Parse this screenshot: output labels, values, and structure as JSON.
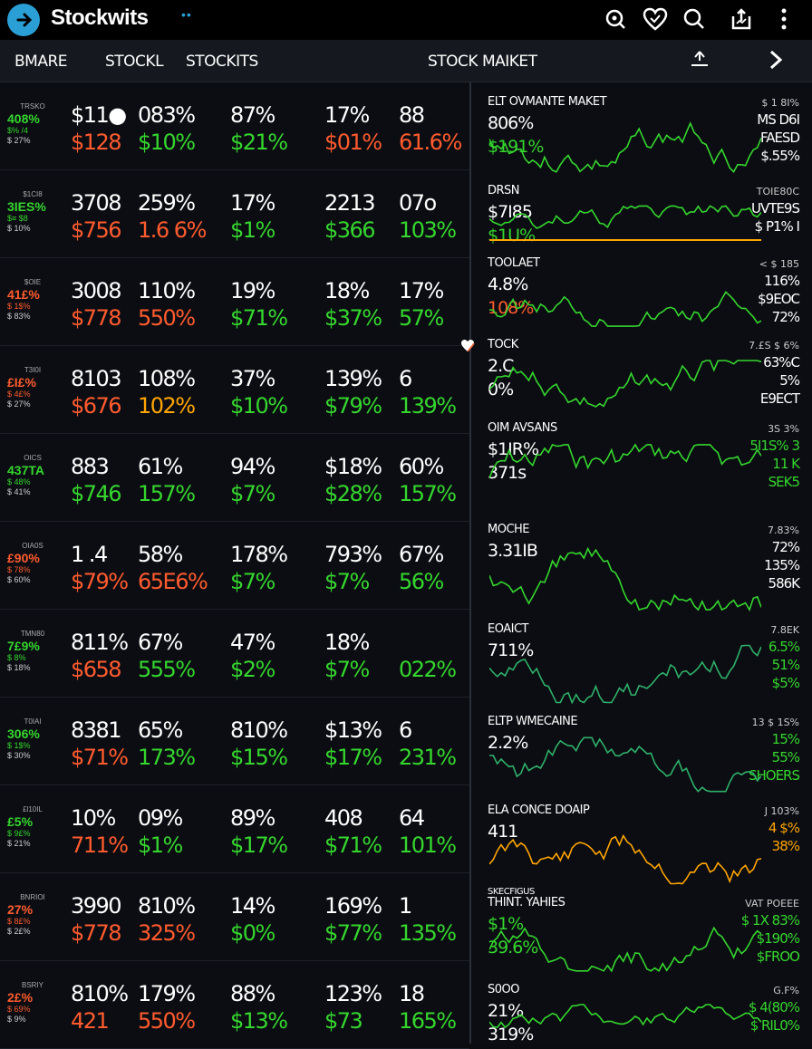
{
  "app": {
    "title": "Stockwits",
    "dots": "••"
  },
  "colors": {
    "green": "#35d62e",
    "red": "#ff5b2e",
    "accent": "#2a9fd6",
    "orange": "#ffa500",
    "bg": "#0a0c10"
  },
  "nav": {
    "items": [
      "BMARE",
      "STOCKL",
      "STOCKITS"
    ],
    "title": "STOCK MAIKET"
  },
  "grid": {
    "rows": [
      {
        "tk": [
          "TRSKO",
          "408%",
          "$% /4",
          "$ 27%"
        ],
        "tkc": "green",
        "cells": [
          [
            "$11●",
            "$128",
            "red"
          ],
          [
            "083%",
            "$10%",
            "green"
          ],
          [
            "87%",
            "$21%",
            "green"
          ],
          [
            "17%",
            "$01%",
            "red"
          ],
          [
            "88",
            "61.6%",
            "red"
          ]
        ]
      },
      {
        "tk": [
          "$1CI8",
          "3IES%",
          "$≡ $8",
          "$ 10%"
        ],
        "tkc": "green",
        "cells": [
          [
            "3708",
            "$756",
            "red"
          ],
          [
            "259%",
            "1.6 6%",
            "red"
          ],
          [
            "17%",
            "$1%",
            "green"
          ],
          [
            "2213",
            "$366",
            "green"
          ],
          [
            "07o",
            "103%",
            "green"
          ]
        ]
      },
      {
        "tk": [
          "$OIE",
          "41£%",
          "$ 1$%",
          "$ 83%"
        ],
        "tkc": "red",
        "cells": [
          [
            "3008",
            "$778",
            "red"
          ],
          [
            "110%",
            "550%",
            "red"
          ],
          [
            "19%",
            "$71%",
            "green"
          ],
          [
            "18%",
            "$37%",
            "green"
          ],
          [
            "17%",
            "57%",
            "green"
          ]
        ]
      },
      {
        "tk": [
          "T3I0I",
          "£I£%",
          "$ 4£%",
          "$ 27%"
        ],
        "tkc": "red",
        "cells": [
          [
            "8103",
            "$676",
            "red"
          ],
          [
            "108%",
            "102%",
            "orange"
          ],
          [
            "37%",
            "$10%",
            "green"
          ],
          [
            "139%",
            "$79%",
            "green"
          ],
          [
            "6",
            "139%",
            "green"
          ]
        ]
      },
      {
        "tk": [
          "OICS",
          "437TA",
          "$ 48%",
          "$ 41%"
        ],
        "tkc": "green",
        "cells": [
          [
            "883",
            "$746",
            "green"
          ],
          [
            "61%",
            "157%",
            "green"
          ],
          [
            "94%",
            "$7%",
            "green"
          ],
          [
            "$18%",
            "$28%",
            "green"
          ],
          [
            "60%",
            "157%",
            "green"
          ]
        ]
      },
      {
        "tk": [
          "OIA0S",
          "£90%",
          "$ 78%",
          "$ 60%"
        ],
        "tkc": "red",
        "cells": [
          [
            "1 .4",
            "$79%",
            "red"
          ],
          [
            "58%",
            "65E6%",
            "red"
          ],
          [
            "178%",
            "$7%",
            "green"
          ],
          [
            "793%",
            "$7%",
            "green"
          ],
          [
            "67%",
            "56%",
            "green"
          ]
        ]
      },
      {
        "tk": [
          "TMN80",
          "7£9%",
          "$ 8%",
          "$ 18%"
        ],
        "tkc": "green",
        "cells": [
          [
            "811%",
            "$658",
            "red"
          ],
          [
            "67%",
            "555%",
            "green"
          ],
          [
            "47%",
            "$2%",
            "green"
          ],
          [
            "18%",
            "$7%",
            "green"
          ],
          [
            "",
            "022%",
            "green"
          ]
        ]
      },
      {
        "tk": [
          "T0IAI",
          "306%",
          "$ 1$%",
          "$ 30%"
        ],
        "tkc": "green",
        "cells": [
          [
            "8381",
            "$71%",
            "red"
          ],
          [
            "65%",
            "173%",
            "green"
          ],
          [
            "810%",
            "$15%",
            "green"
          ],
          [
            "$13%",
            "$17%",
            "green"
          ],
          [
            "6",
            "231%",
            "green"
          ]
        ]
      },
      {
        "tk": [
          "£l10IL",
          "£5%",
          "$ 9£%",
          "$ 21%"
        ],
        "tkc": "green",
        "cells": [
          [
            "10%",
            "711%",
            "red"
          ],
          [
            "09%",
            "$1%",
            "green"
          ],
          [
            "89%",
            "$17%",
            "green"
          ],
          [
            "408",
            "$71%",
            "green"
          ],
          [
            "64",
            "101%",
            "green"
          ]
        ]
      },
      {
        "tk": [
          "BNRIOI",
          "27%",
          "$ 8£%",
          "$ 2£%"
        ],
        "tkc": "red",
        "cells": [
          [
            "3990",
            "$778",
            "red"
          ],
          [
            "810%",
            "325%",
            "red"
          ],
          [
            "14%",
            "$0%",
            "green"
          ],
          [
            "169%",
            "$77%",
            "green"
          ],
          [
            "1",
            "135%",
            "green"
          ]
        ]
      },
      {
        "tk": [
          "BSRIY",
          "2£%",
          "$ 69%",
          "$ 9%"
        ],
        "tkc": "red",
        "cells": [
          [
            "810%",
            "421",
            "red"
          ],
          [
            "179%",
            "550%",
            "red"
          ],
          [
            "88%",
            "$13%",
            "green"
          ],
          [
            "123%",
            "$73",
            "green"
          ],
          [
            "18",
            "165%",
            "green"
          ]
        ]
      }
    ]
  },
  "panels": [
    {
      "title": "ELT OVMANTE MAKET",
      "right_label": "$ 1 8I%",
      "value": "806%",
      "value2": "$191%",
      "vc": "white",
      "v2c": "green",
      "rv": [
        "MS D6I",
        "FAESD",
        "$.55%"
      ],
      "rvc": "white"
    },
    {
      "title": "DRSN",
      "right_label": "TOIE80C",
      "value": "$7I85",
      "value2": "$1U%",
      "vc": "white",
      "v2c": "green",
      "rv": [
        "UVTE9S",
        "$ P1% I"
      ],
      "rvc": "white"
    },
    {
      "title": "TOOLAET",
      "right_label": "< $ 185",
      "value": "4.8%",
      "value2": "108%",
      "vc": "white",
      "v2c": "red",
      "rv": [
        "116%",
        "$9EOC",
        "72%"
      ],
      "rvc": "white"
    },
    {
      "title": "TOCK",
      "right_label": "7.£S $ 6%",
      "value": "2.C",
      "value2": "0%",
      "vc": "white",
      "v2c": "white",
      "rv": [
        "63%C",
        "5%",
        "E9ECT"
      ],
      "rvc": "white"
    },
    {
      "title": "OIM AVSANS",
      "right_label": "3S 3%",
      "value": "$1IR%",
      "value2": "371s",
      "vc": "white",
      "v2c": "white",
      "rv": [
        "5I1S% 3",
        "11 K",
        "SEK5"
      ],
      "rvc": "green"
    },
    {
      "title": "MOCHE",
      "right_label": "7.83%",
      "value": "3.31IB",
      "value2": "",
      "vc": "white",
      "v2c": "white",
      "rv": [
        "72%",
        "135%",
        "586K"
      ],
      "rvc": "white"
    },
    {
      "title": "EOAICT",
      "right_label": "7.8EK",
      "value": "711%",
      "value2": "",
      "vc": "white",
      "v2c": "white",
      "rv": [
        "6.5%",
        "51%",
        "$5%"
      ],
      "rvc": "green"
    },
    {
      "title": "ELTP WMECAINE",
      "right_label": "13 $ 1S%",
      "value": "2.2%",
      "value2": "",
      "vc": "white",
      "v2c": "white",
      "rv": [
        "15%",
        "55%",
        "SHOERS"
      ],
      "rvc": "green"
    },
    {
      "title": "ELA CONCE DOAIP",
      "right_label": "J 103%",
      "value": "411",
      "value2": "",
      "vc": "white",
      "v2c": "white",
      "rv": [
        "4 $%",
        "38%"
      ],
      "rvc": "orange"
    },
    {
      "title": "THINT. YAHIES",
      "right_label": "VAT POEEE",
      "value": "$1%",
      "value2": "39.6%",
      "vc": "green",
      "v2c": "green",
      "rv": [
        "$ 1X 83%",
        "$190%",
        "$FROO"
      ],
      "rvc": "green",
      "label": "SKECFIGUS"
    },
    {
      "title": "S0OO",
      "right_label": "G.F%",
      "value": "21%",
      "value2": "319%",
      "vc": "white",
      "v2c": "white",
      "rv": [
        "$ 4(80%",
        "$ RIL0%"
      ],
      "rvc": "green"
    }
  ],
  "icons": {
    "logo": "logo-icon",
    "top": [
      "search-icon",
      "heart-icon",
      "search-icon",
      "share-icon",
      "more-icon"
    ],
    "nav": [
      "upload-icon",
      "chevron-right-icon"
    ]
  }
}
